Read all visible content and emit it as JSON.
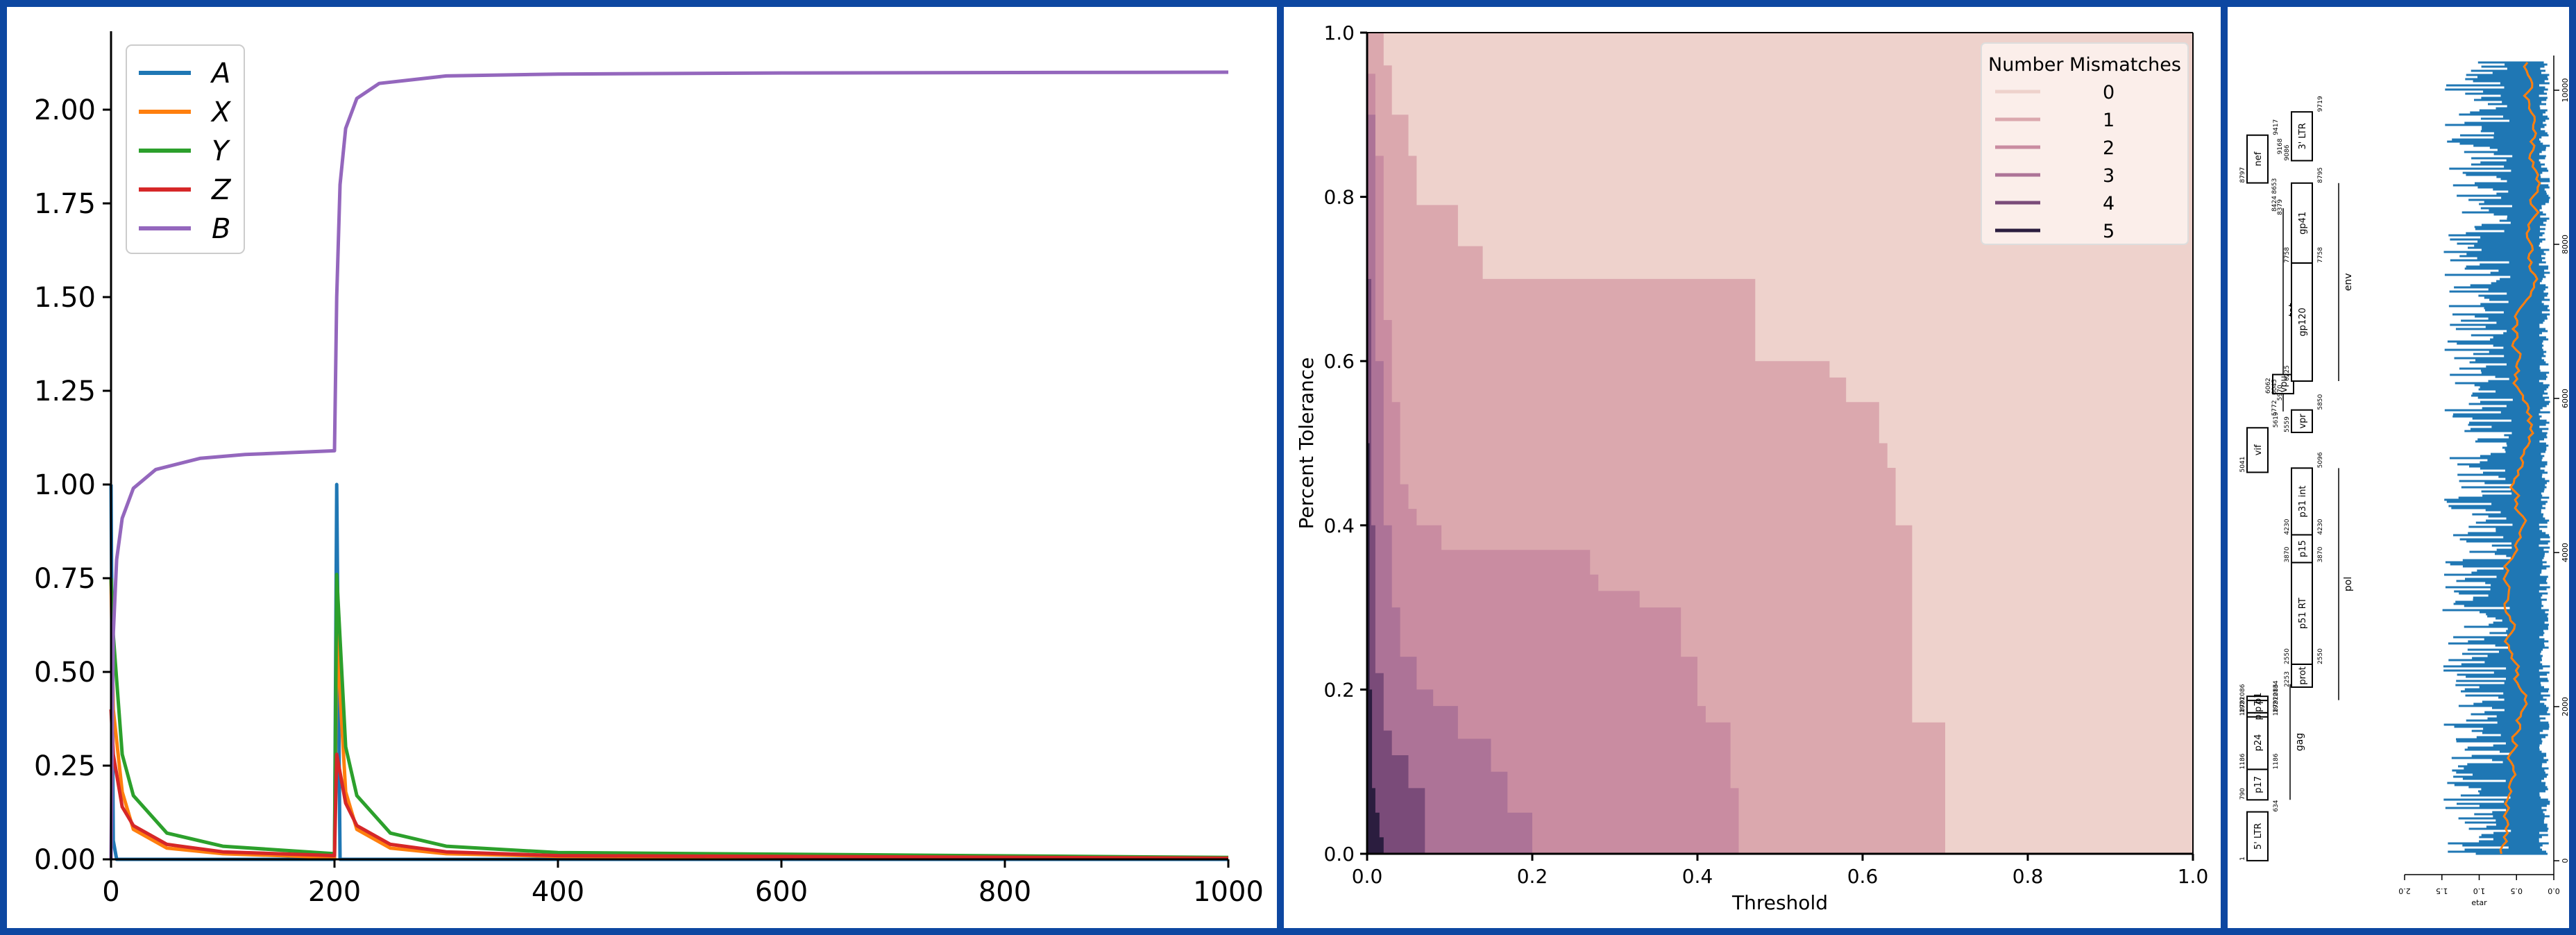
{
  "chart_data": [
    {
      "type": "line",
      "title": "",
      "xlabel": "",
      "ylabel": "",
      "xlim": [
        0,
        1000
      ],
      "ylim": [
        0,
        2.2
      ],
      "x_ticks": [
        "0",
        "200",
        "400",
        "600",
        "800",
        "1000"
      ],
      "y_ticks": [
        "0.00",
        "0.25",
        "0.50",
        "0.75",
        "1.00",
        "1.25",
        "1.50",
        "1.75",
        "2.00"
      ],
      "legend_position": "top-left",
      "series": [
        {
          "name": "A",
          "color": "#1f77b4",
          "x": [
            0,
            2,
            5,
            200,
            202,
            205,
            1000
          ],
          "y": [
            1.0,
            0.05,
            0.0,
            0.0,
            1.0,
            0.0,
            0.0
          ]
        },
        {
          "name": "X",
          "color": "#ff7f0e",
          "x": [
            0,
            2,
            10,
            20,
            50,
            100,
            200,
            202,
            210,
            220,
            250,
            300,
            400,
            1000
          ],
          "y": [
            0.75,
            0.4,
            0.18,
            0.08,
            0.03,
            0.015,
            0.005,
            0.6,
            0.18,
            0.08,
            0.03,
            0.015,
            0.008,
            0.002
          ]
        },
        {
          "name": "Y",
          "color": "#2ca02c",
          "x": [
            0,
            2,
            10,
            20,
            50,
            100,
            200,
            202,
            210,
            220,
            250,
            300,
            400,
            1000
          ],
          "y": [
            0.75,
            0.6,
            0.28,
            0.17,
            0.07,
            0.035,
            0.015,
            0.76,
            0.3,
            0.17,
            0.07,
            0.035,
            0.018,
            0.005
          ]
        },
        {
          "name": "Z",
          "color": "#d62728",
          "x": [
            0,
            2,
            10,
            20,
            50,
            100,
            200,
            202,
            210,
            220,
            250,
            300,
            400,
            1000
          ],
          "y": [
            0.4,
            0.28,
            0.14,
            0.09,
            0.04,
            0.02,
            0.01,
            0.28,
            0.15,
            0.09,
            0.04,
            0.02,
            0.01,
            0.003
          ]
        },
        {
          "name": "B",
          "color": "#9467bd",
          "x": [
            0,
            2,
            5,
            10,
            20,
            40,
            80,
            120,
            200,
            202,
            205,
            210,
            220,
            240,
            300,
            400,
            600,
            1000
          ],
          "y": [
            0.0,
            0.6,
            0.8,
            0.91,
            0.99,
            1.04,
            1.07,
            1.08,
            1.09,
            1.5,
            1.8,
            1.95,
            2.03,
            2.07,
            2.09,
            2.095,
            2.098,
            2.1
          ]
        }
      ]
    },
    {
      "type": "area",
      "title": "",
      "xlabel": "Threshold",
      "ylabel": "Percent Tolerance",
      "xlim": [
        0,
        1.0
      ],
      "ylim": [
        0,
        1.0
      ],
      "x_ticks": [
        "0.0",
        "0.2",
        "0.4",
        "0.6",
        "0.8",
        "1.0"
      ],
      "y_ticks": [
        "0.0",
        "0.2",
        "0.4",
        "0.6",
        "0.8",
        "1.0"
      ],
      "legend_title": "Number Mismatches",
      "legend_position": "top-right",
      "legend_entries": [
        "0",
        "1",
        "2",
        "3",
        "4",
        "5"
      ],
      "series": [
        {
          "name": "0",
          "color": "#eed2cc",
          "x": [
            0,
            0.0,
            1.0,
            1.0
          ],
          "y": [
            0,
            1.0,
            1.0,
            0
          ]
        },
        {
          "name": "1",
          "color": "#dba8ae",
          "x": [
            0.01,
            0.02,
            0.03,
            0.05,
            0.06,
            0.1,
            0.11,
            0.13,
            0.14,
            0.45,
            0.47,
            0.52,
            0.56,
            0.58,
            0.61,
            0.62,
            0.63,
            0.64,
            0.66,
            0.66,
            0.7
          ],
          "y": [
            1.0,
            0.96,
            0.9,
            0.85,
            0.79,
            0.79,
            0.74,
            0.74,
            0.7,
            0.7,
            0.6,
            0.6,
            0.58,
            0.55,
            0.55,
            0.5,
            0.47,
            0.4,
            0.3,
            0.16,
            0.0
          ]
        },
        {
          "name": "2",
          "color": "#c98ca1",
          "x": [
            0.0,
            0.01,
            0.02,
            0.03,
            0.04,
            0.05,
            0.06,
            0.09,
            0.2,
            0.27,
            0.28,
            0.33,
            0.38,
            0.4,
            0.41,
            0.44,
            0.45
          ],
          "y": [
            0.95,
            0.85,
            0.65,
            0.55,
            0.45,
            0.42,
            0.4,
            0.37,
            0.37,
            0.34,
            0.32,
            0.3,
            0.24,
            0.18,
            0.16,
            0.08,
            0.0
          ]
        },
        {
          "name": "3",
          "color": "#ad7397",
          "x": [
            0.0,
            0.01,
            0.02,
            0.03,
            0.04,
            0.06,
            0.08,
            0.11,
            0.15,
            0.17,
            0.2
          ],
          "y": [
            0.9,
            0.6,
            0.4,
            0.3,
            0.24,
            0.2,
            0.18,
            0.14,
            0.1,
            0.05,
            0.0
          ]
        },
        {
          "name": "4",
          "color": "#7a4b79",
          "x": [
            0.0,
            0.005,
            0.01,
            0.02,
            0.03,
            0.05,
            0.07
          ],
          "y": [
            0.7,
            0.4,
            0.22,
            0.15,
            0.12,
            0.08,
            0.0
          ]
        },
        {
          "name": "5",
          "color": "#2b1d3f",
          "x": [
            0.0,
            0.003,
            0.006,
            0.01,
            0.015,
            0.02
          ],
          "y": [
            0.5,
            0.2,
            0.08,
            0.05,
            0.02,
            0.0
          ]
        }
      ]
    },
    {
      "type": "line",
      "title": "",
      "xlabel": "ɹɐʇǝ",
      "ylabel": "",
      "xlim": [
        0,
        2.0
      ],
      "ylim": [
        0,
        10000
      ],
      "x_ticks": [
        "2.0",
        "1.5",
        "1.0",
        "0.5",
        "0.0"
      ],
      "y_ticks": [
        "0",
        "2000",
        "4000",
        "6000",
        "8000",
        "10000"
      ],
      "series": [
        {
          "name": "",
          "color": "#1f77b4",
          "x": [
            0.9,
            0.9
          ],
          "y": [
            0,
            9700
          ]
        },
        {
          "name": "",
          "color": "#ff7f0e",
          "x": [
            0.3,
            0.5
          ],
          "y": [
            0,
            9700
          ]
        }
      ],
      "genome_map": {
        "genes": [
          {
            "label": "5' LTR",
            "start": "1",
            "end": "634"
          },
          {
            "label": "gag",
            "start": "790",
            "end": "2292"
          },
          {
            "label": "p17",
            "start": "790",
            "end": "1186"
          },
          {
            "label": "p24",
            "start": "1186",
            "end": "1879"
          },
          {
            "label": "p2",
            "start": "1879",
            "end": "1921"
          },
          {
            "label": "p7",
            "start": "1921",
            "end": "2086"
          },
          {
            "label": "p1",
            "start": "2086",
            "end": "2134"
          },
          {
            "label": "pol",
            "start": "2085",
            "end": "5096"
          },
          {
            "label": "prot",
            "start": "2253",
            "end": "2550"
          },
          {
            "label": "p51 RT",
            "start": "2550",
            "end": "3870"
          },
          {
            "label": "p15",
            "start": "3870",
            "end": "4230"
          },
          {
            "label": "p31 int",
            "start": "4230",
            "end": "5096"
          },
          {
            "label": "vif",
            "start": "5041",
            "end": "5619"
          },
          {
            "label": "vpr",
            "start": "5559",
            "end": "5850"
          },
          {
            "label": "tat",
            "start": "5831",
            "end": "8469"
          },
          {
            "label": "vpu",
            "start": "6062",
            "end": "6310"
          },
          {
            "label": "env",
            "start": "6225",
            "end": "8795"
          },
          {
            "label": "gp120",
            "start": "6225",
            "end": "7758"
          },
          {
            "label": "gp41",
            "start": "7758",
            "end": "8795"
          },
          {
            "label": "nef",
            "start": "8797",
            "end": "9417"
          },
          {
            "label": "3' LTR",
            "start": "9086",
            "end": "9719"
          }
        ],
        "misc_numbers": [
          "5772",
          "5970",
          "6045",
          "8379",
          "8424",
          "9168",
          "8653"
        ]
      }
    }
  ]
}
